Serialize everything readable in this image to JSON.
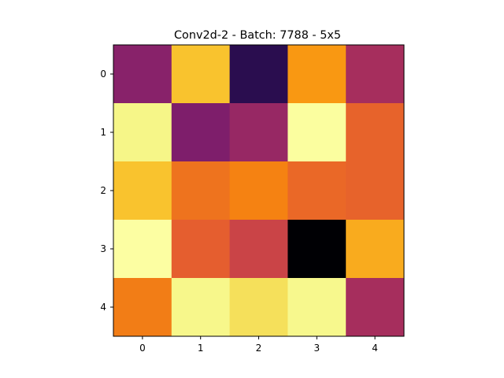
{
  "chart_data": {
    "type": "heatmap",
    "title": "Conv2d-2 - Batch: 7788 - 5x5",
    "xlabel": "",
    "ylabel": "",
    "x_ticks": [
      "0",
      "1",
      "2",
      "3",
      "4"
    ],
    "y_ticks": [
      "0",
      "1",
      "2",
      "3",
      "4"
    ],
    "colormap": "inferno",
    "legend": "none",
    "grid": false,
    "values": [
      [
        0.3,
        0.69,
        0.12,
        0.62,
        0.36
      ],
      [
        0.88,
        0.28,
        0.33,
        0.98,
        0.52
      ],
      [
        0.69,
        0.55,
        0.58,
        0.53,
        0.52
      ],
      [
        0.99,
        0.51,
        0.44,
        0.0,
        0.65
      ],
      [
        0.57,
        0.89,
        0.76,
        0.9,
        0.36
      ]
    ]
  }
}
